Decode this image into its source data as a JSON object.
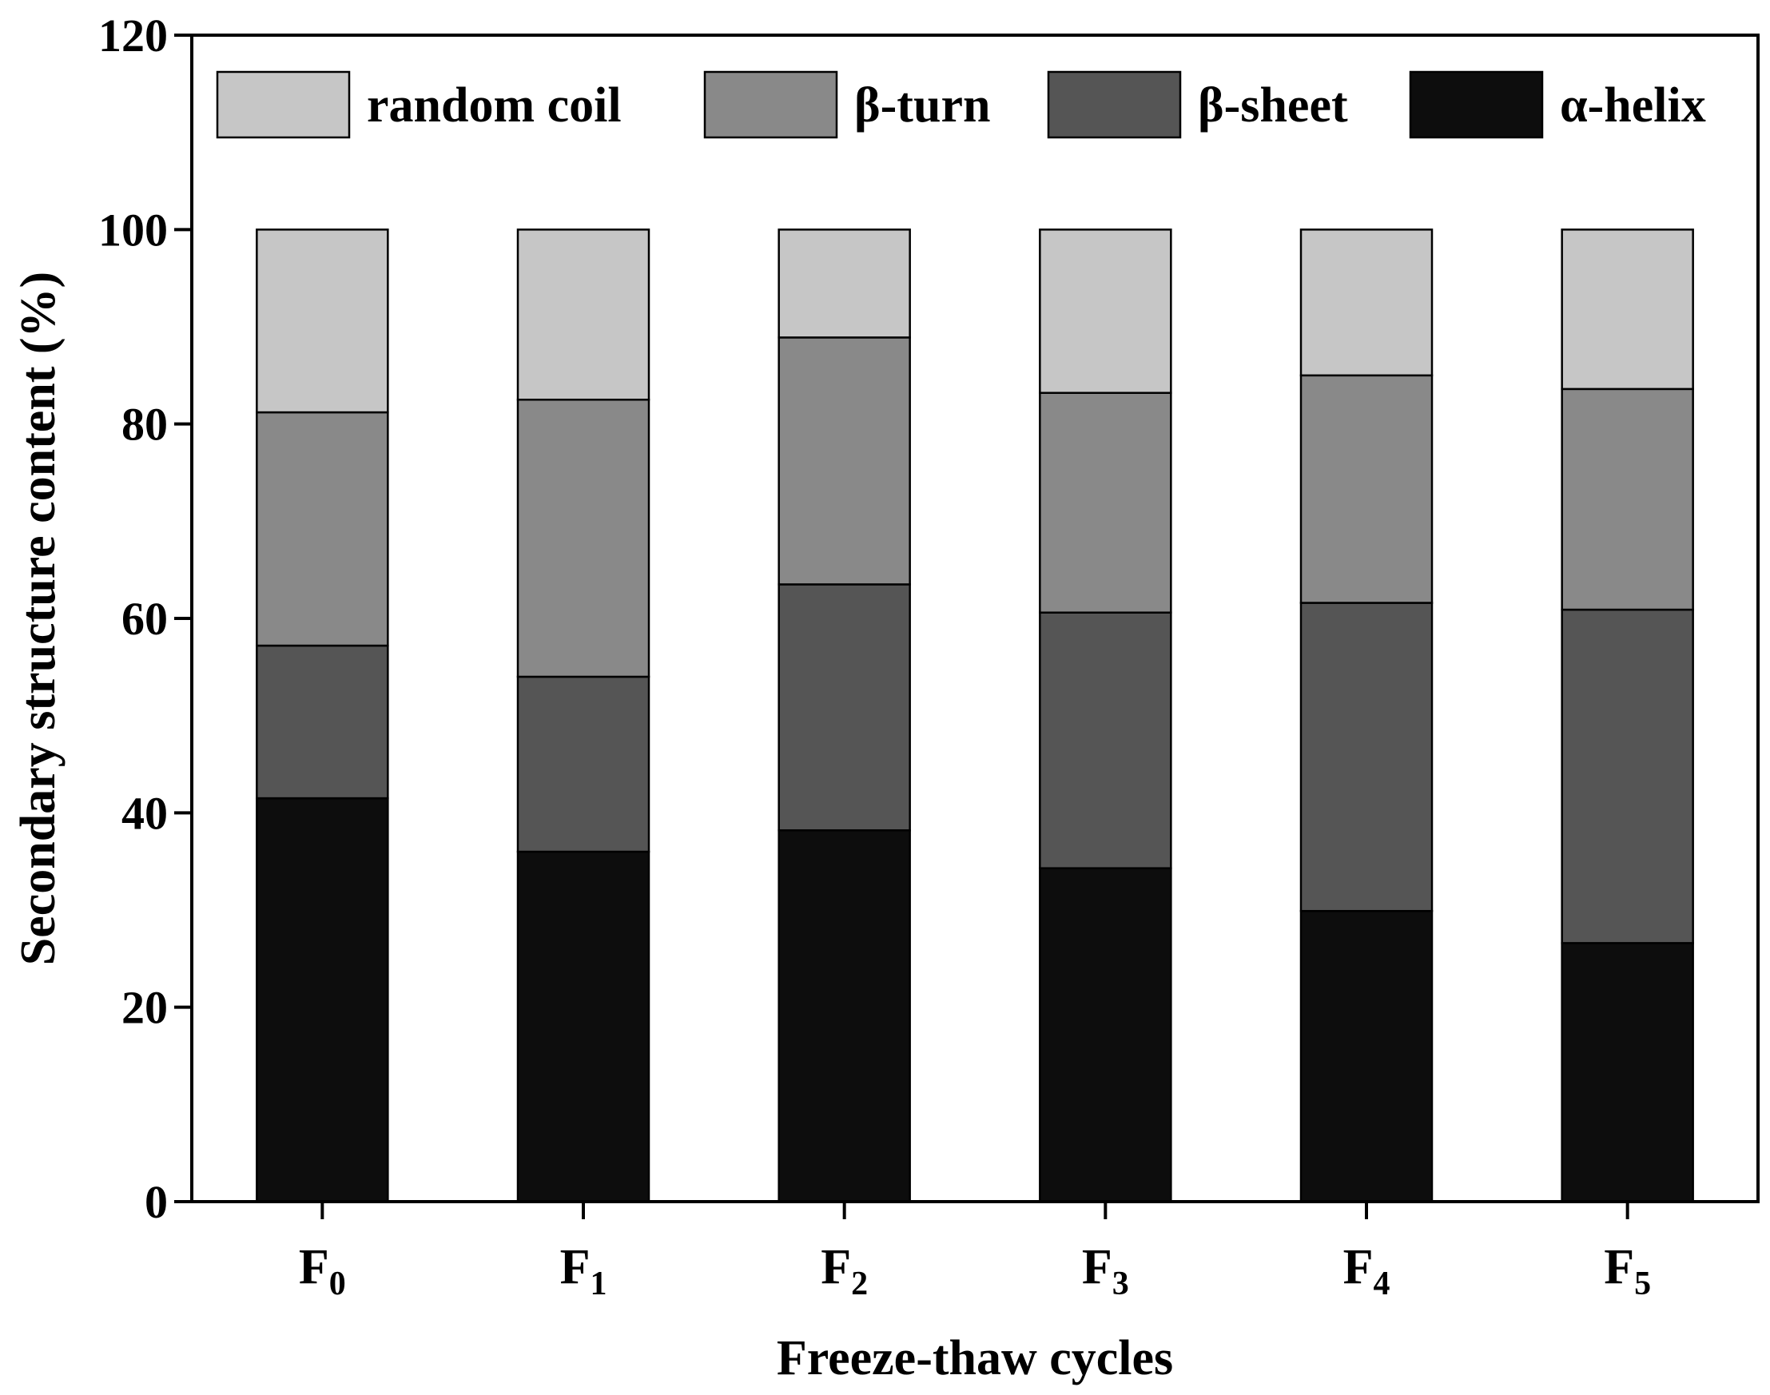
{
  "chart_data": {
    "type": "bar",
    "stacked": true,
    "xlabel": "Freeze-thaw cycles",
    "ylabel": "Secondary structure content (%)",
    "ylim": [
      0,
      120
    ],
    "yticks": [
      0,
      20,
      40,
      60,
      80,
      100,
      120
    ],
    "categories": [
      {
        "base": "F",
        "sub": "0"
      },
      {
        "base": "F",
        "sub": "1"
      },
      {
        "base": "F",
        "sub": "2"
      },
      {
        "base": "F",
        "sub": "3"
      },
      {
        "base": "F",
        "sub": "4"
      },
      {
        "base": "F",
        "sub": "5"
      }
    ],
    "series": [
      {
        "name": "α-helix",
        "color": "#0d0d0d",
        "values": [
          41.5,
          36.0,
          38.2,
          34.3,
          29.9,
          26.6
        ]
      },
      {
        "name": "β-sheet",
        "color": "#555555",
        "values": [
          15.7,
          18.0,
          25.3,
          26.3,
          31.7,
          34.3
        ]
      },
      {
        "name": "β-turn",
        "color": "#898989",
        "values": [
          24.0,
          28.5,
          25.4,
          22.6,
          23.4,
          22.7
        ]
      },
      {
        "name": "random coil",
        "color": "#c6c6c6",
        "values": [
          18.8,
          17.5,
          11.1,
          16.8,
          15.0,
          16.4
        ]
      }
    ],
    "legend_order": [
      "random coil",
      "β-turn",
      "β-sheet",
      "α-helix"
    ],
    "legend_position": "top",
    "grid": false
  }
}
